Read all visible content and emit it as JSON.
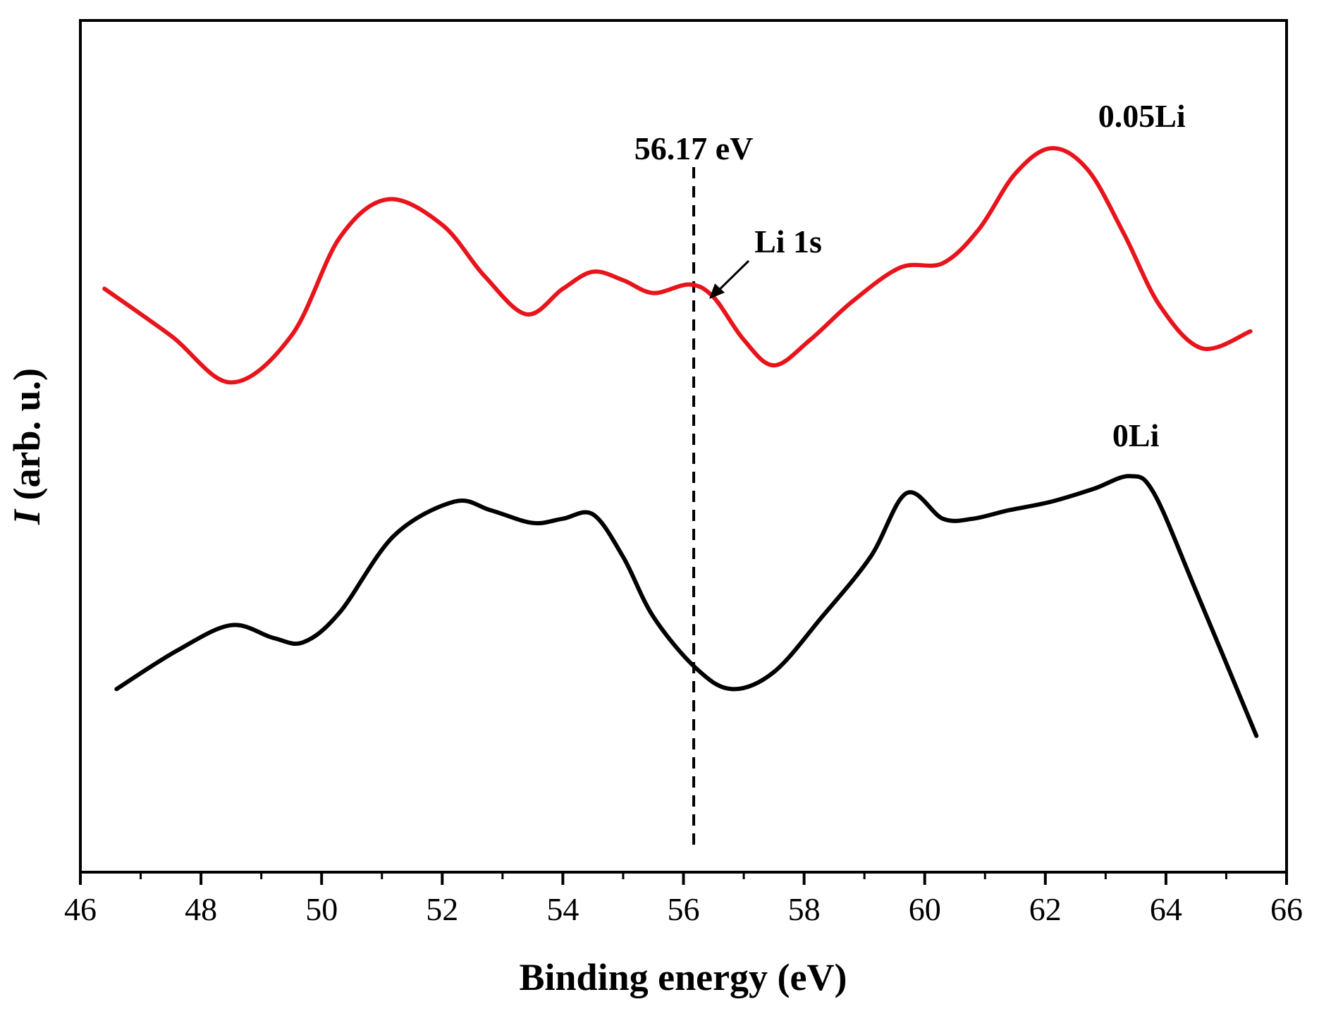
{
  "chart_data": {
    "type": "line",
    "title": "",
    "xlabel": "Binding energy (eV)",
    "ylabel_italic": "I",
    "ylabel_rest": " (arb. u.)",
    "xlim": [
      46,
      66
    ],
    "ylim": [
      0,
      100
    ],
    "xticks": [
      46,
      48,
      50,
      52,
      54,
      56,
      58,
      60,
      62,
      64,
      66
    ],
    "yticks_shown": false,
    "grid": false,
    "reference_line": {
      "x": 56.17,
      "label": "56.17 eV",
      "style": "dashed"
    },
    "arrow_annotation": {
      "text": "Li 1s",
      "points_to_x": 56.17,
      "points_to_series": "0.05Li"
    },
    "series": [
      {
        "name": "0.05Li",
        "color": "#e8141b",
        "x": [
          46.4,
          47.5,
          48.5,
          49.5,
          50.3,
          51.1,
          52.0,
          52.7,
          53.4,
          54.0,
          54.5,
          55.0,
          55.5,
          56.1,
          56.5,
          57.0,
          57.5,
          58.1,
          58.8,
          59.6,
          60.3,
          60.9,
          61.5,
          62.1,
          62.7,
          63.3,
          63.9,
          64.6,
          65.4
        ],
        "y": [
          68.5,
          63.0,
          57.5,
          63.0,
          74.5,
          79.0,
          76.0,
          70.0,
          65.5,
          68.5,
          70.5,
          69.5,
          68.0,
          69.0,
          67.5,
          62.5,
          59.5,
          62.5,
          67.0,
          71.0,
          71.5,
          75.5,
          82.0,
          85.0,
          82.5,
          75.0,
          66.5,
          61.5,
          63.5
        ]
      },
      {
        "name": "0Li",
        "color": "#000000",
        "x": [
          46.6,
          47.6,
          48.5,
          49.2,
          49.7,
          50.3,
          51.2,
          52.2,
          52.8,
          53.5,
          54.0,
          54.5,
          55.0,
          55.5,
          56.2,
          56.8,
          57.5,
          58.3,
          59.1,
          59.7,
          60.3,
          60.8,
          61.4,
          62.1,
          62.8,
          63.4,
          63.8,
          64.5,
          65.5
        ],
        "y": [
          21.5,
          26.0,
          29.0,
          27.5,
          27.0,
          30.5,
          39.5,
          43.5,
          42.5,
          41.0,
          41.5,
          42.0,
          37.0,
          30.0,
          24.0,
          21.5,
          23.5,
          30.0,
          37.0,
          44.5,
          41.5,
          41.5,
          42.5,
          43.5,
          45.0,
          46.5,
          44.5,
          33.0,
          16.0
        ]
      }
    ],
    "series_labels": [
      {
        "text": "0.05Li",
        "x": 63.6,
        "y": 87.5
      },
      {
        "text": "0Li",
        "x": 63.5,
        "y": 50.0
      }
    ]
  }
}
